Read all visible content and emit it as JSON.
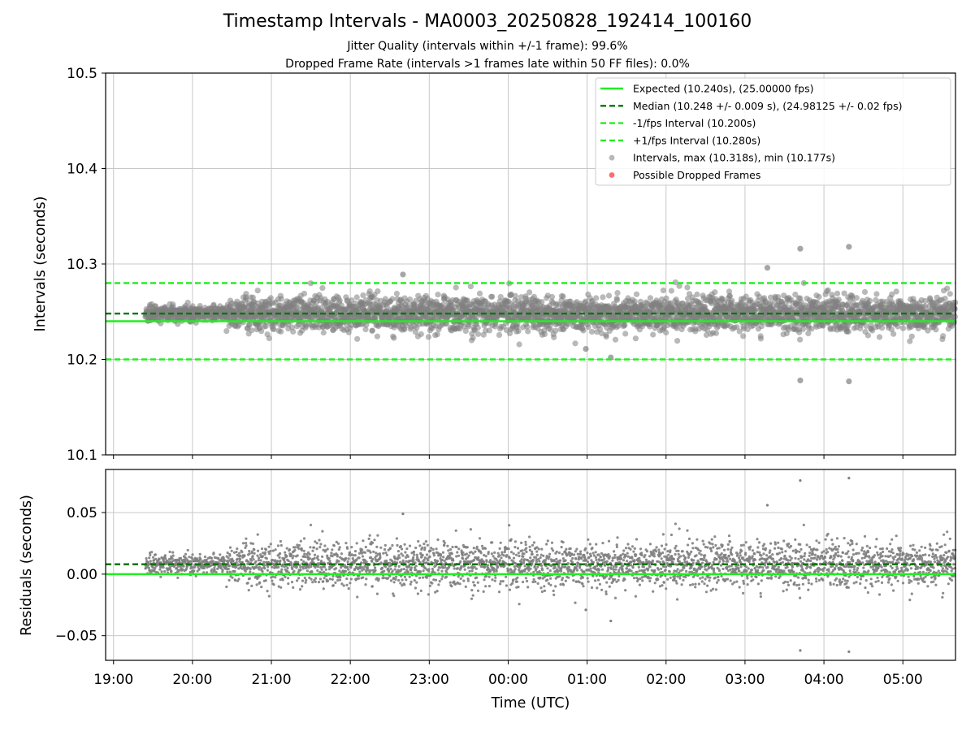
{
  "title": "Timestamp Intervals - MA0003_20250828_192414_100160",
  "subtitle_jitter": "Jitter Quality (intervals within +/-1 frame): 99.6%",
  "subtitle_dropped": "Dropped Frame Rate (intervals >1 frames late within 50 FF files): 0.0%",
  "colors": {
    "expected": "#22ee22",
    "median": "#007700",
    "interval_band": "#22ee22",
    "points": "#808080",
    "dropped": "#ff5555",
    "grid": "#c8c8c8"
  },
  "chart_data": [
    {
      "type": "scatter",
      "panel": "top",
      "ylabel": "Intervals (seconds)",
      "ylim": [
        10.1,
        10.5
      ],
      "yticks": [
        "10.1",
        "10.2",
        "10.3",
        "10.4",
        "10.5"
      ],
      "grid": true,
      "legend_position": "top-right",
      "reference_lines": [
        {
          "name": "Expected (10.240s), (25.00000 fps)",
          "y": 10.24,
          "style": "solid"
        },
        {
          "name": "Median (10.248 +/- 0.009 s), (24.98125 +/- 0.02 fps)",
          "y": 10.248,
          "style": "dashed"
        },
        {
          "name": "-1/fps Interval (10.200s)",
          "y": 10.2,
          "style": "dashed"
        },
        {
          "name": "+1/fps Interval (10.280s)",
          "y": 10.28,
          "style": "dashed"
        }
      ],
      "series": [
        {
          "name": "Intervals, max (10.318s), min (10.177s)",
          "x_start": "19:24:14",
          "x_end": "05:40",
          "median": 10.248,
          "std": 0.009
        },
        {
          "name": "Possible Dropped Frames",
          "count": 0
        }
      ],
      "notable_points": [
        {
          "x": "22:40",
          "y": 10.289
        },
        {
          "x": "03:17",
          "y": 10.296
        },
        {
          "x": "03:42",
          "y": 10.316
        },
        {
          "x": "04:19",
          "y": 10.318
        },
        {
          "x": "03:42",
          "y": 10.178
        },
        {
          "x": "04:19",
          "y": 10.177
        },
        {
          "x": "00:59",
          "y": 10.211
        },
        {
          "x": "01:18",
          "y": 10.202
        }
      ]
    },
    {
      "type": "scatter",
      "panel": "bottom",
      "xlabel": "Time (UTC)",
      "ylabel": "Residuals (seconds)",
      "ylim": [
        -0.07,
        0.085
      ],
      "yticks": [
        "−0.05",
        "0.00",
        "0.05"
      ],
      "xlim": [
        "18:54",
        "05:40"
      ],
      "xticks": [
        "19:00",
        "20:00",
        "21:00",
        "22:00",
        "23:00",
        "00:00",
        "01:00",
        "02:00",
        "03:00",
        "04:00",
        "05:00"
      ],
      "grid": true,
      "reference_lines": [
        {
          "y": 0.0,
          "style": "solid"
        },
        {
          "y": 0.008,
          "style": "dashed"
        }
      ],
      "series": [
        {
          "name": "residuals",
          "x_start": "19:24:14",
          "x_end": "05:40",
          "median": 0.008,
          "std": 0.009
        }
      ]
    }
  ]
}
